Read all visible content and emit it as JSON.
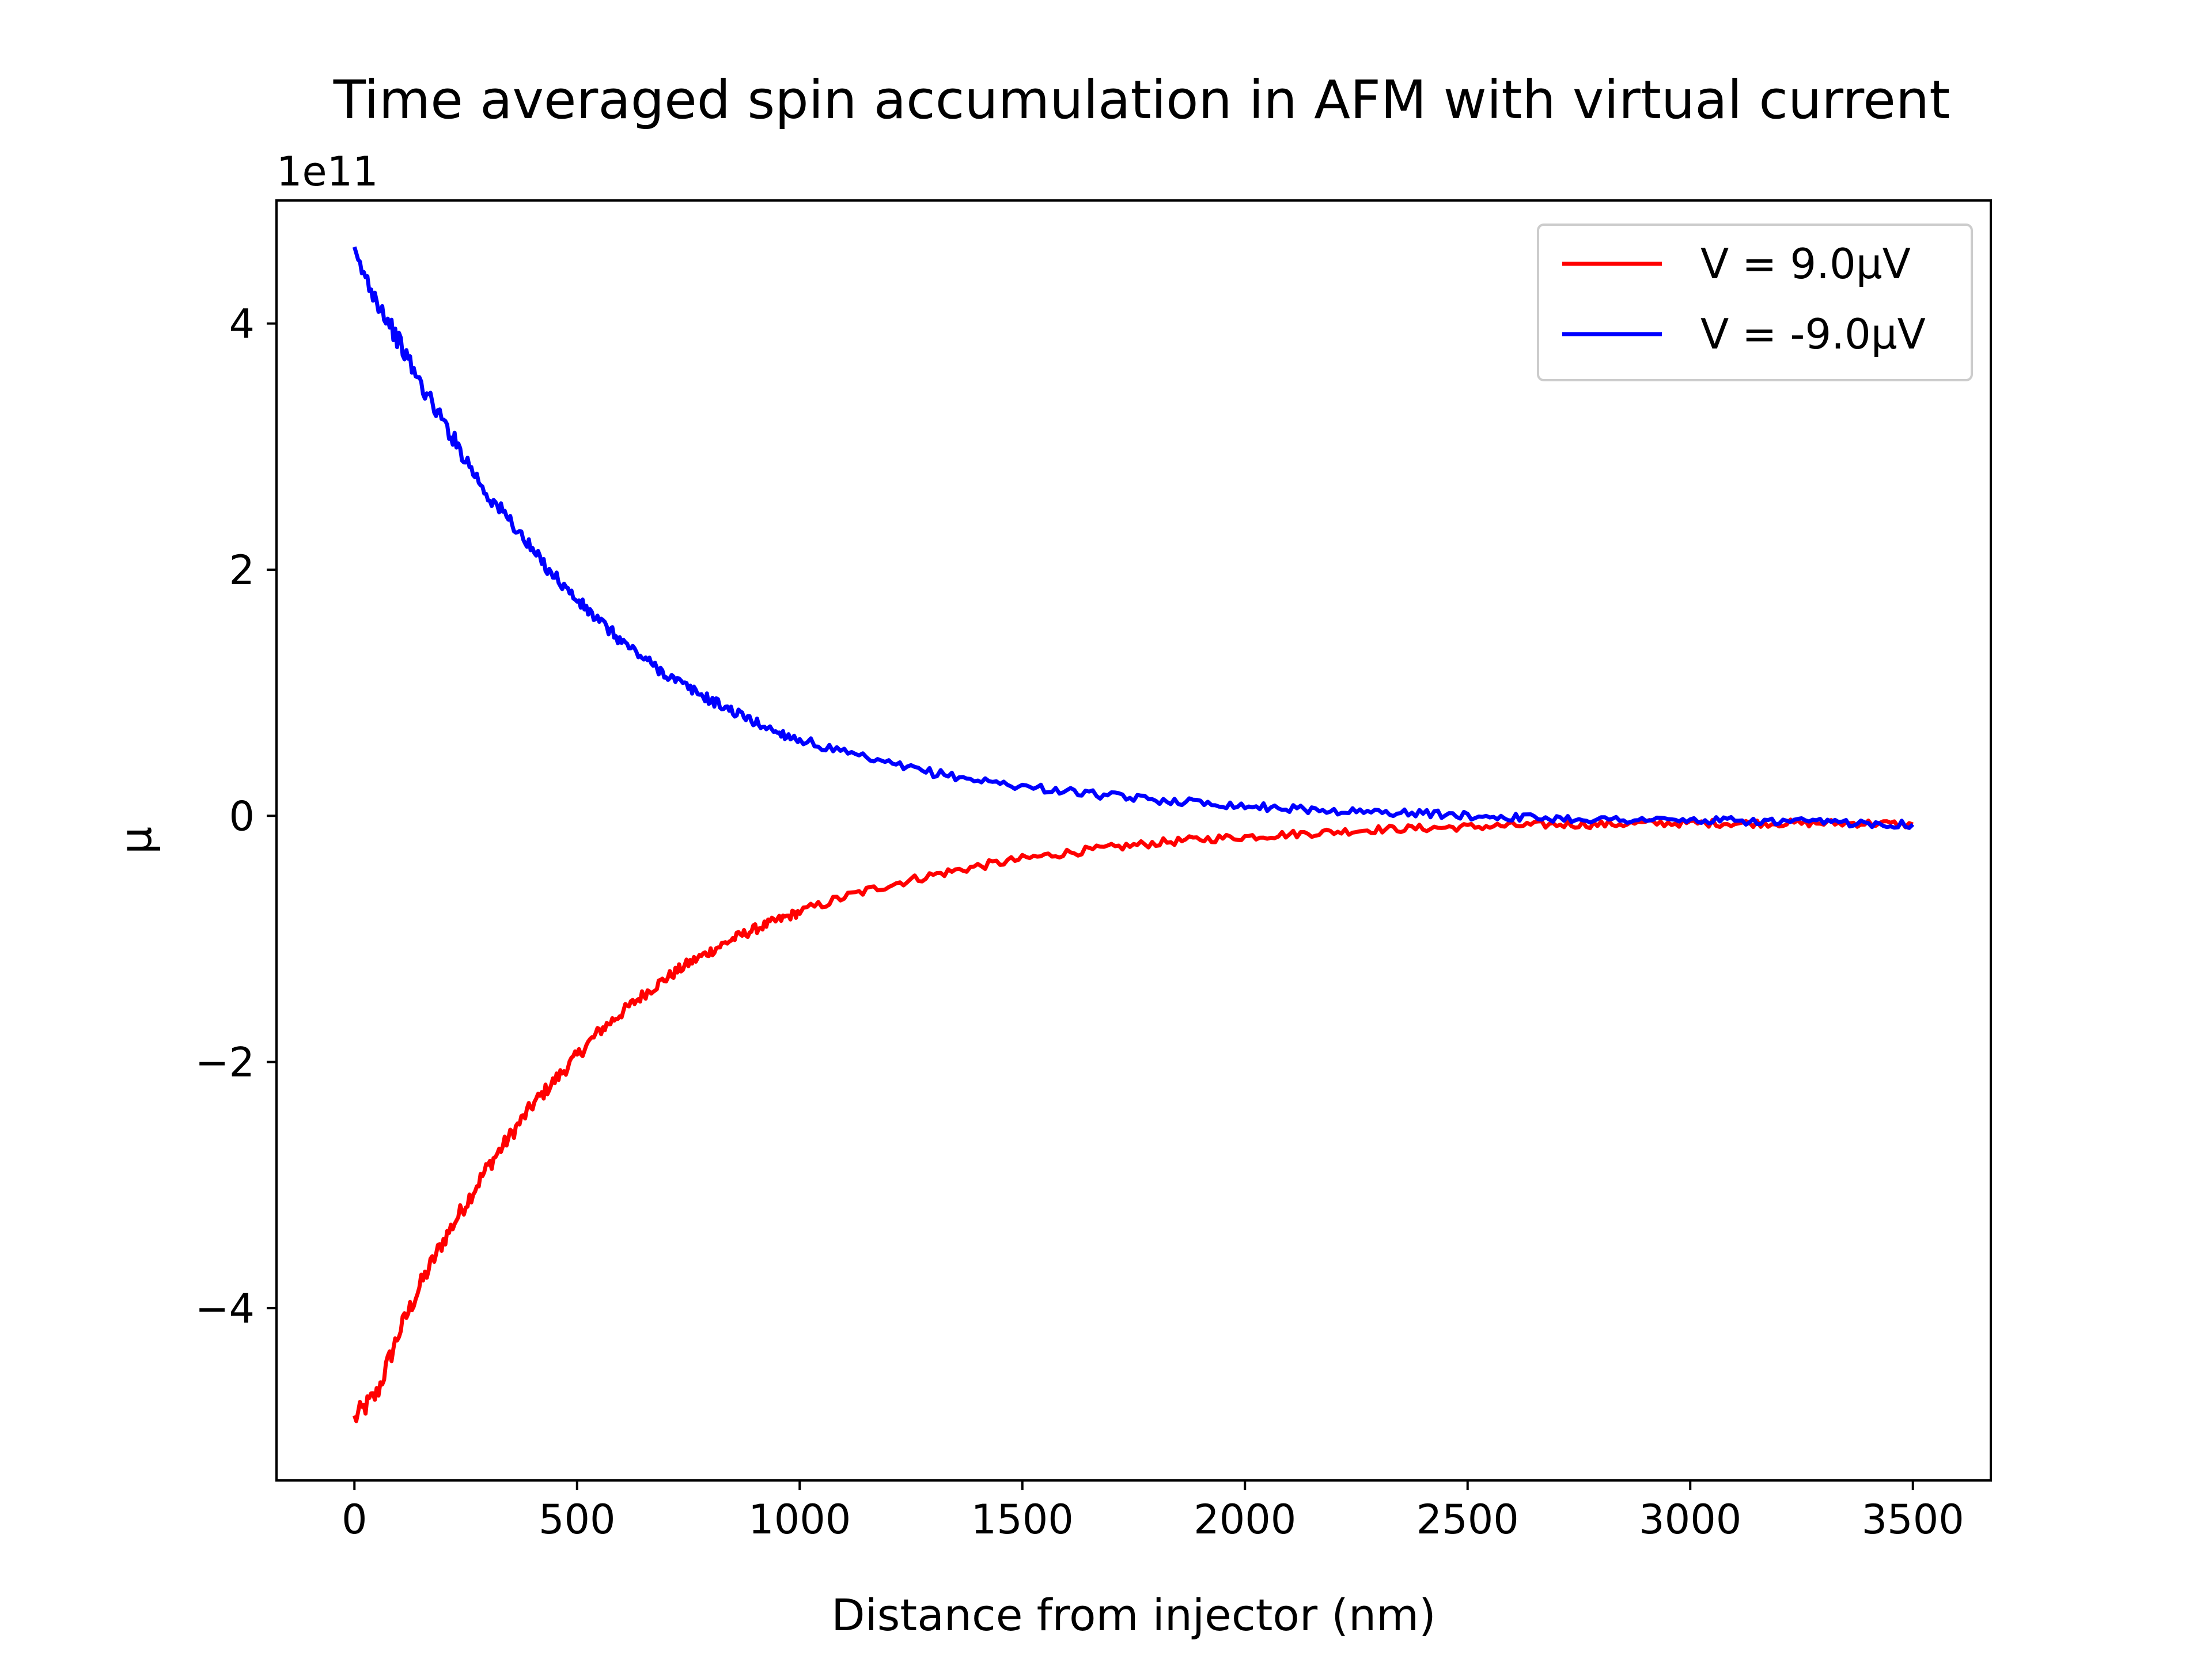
{
  "chart_data": {
    "type": "line",
    "title": "Time averaged spin accumulation in AFM with virtual current",
    "xlabel": "Distance from injector (nm)",
    "ylabel": "μ",
    "offset_text": "1e11",
    "xlim": [
      -175,
      3675
    ],
    "ylim": [
      -5.4,
      5.0
    ],
    "x_ticks": [
      0,
      500,
      1000,
      1500,
      2000,
      2500,
      3000,
      3500
    ],
    "x_tick_labels": [
      "0",
      "500",
      "1000",
      "1500",
      "2000",
      "2500",
      "3000",
      "3500"
    ],
    "y_ticks": [
      -4,
      -2,
      0,
      2,
      4
    ],
    "y_tick_labels": [
      "−4",
      "−2",
      "0",
      "2",
      "4"
    ],
    "grid": false,
    "legend_position": "upper right",
    "series": [
      {
        "name": "V = 9.0μV",
        "color": "#ff0000",
        "x": [
          0,
          50,
          100,
          150,
          200,
          250,
          300,
          350,
          400,
          450,
          500,
          550,
          600,
          650,
          700,
          750,
          800,
          850,
          900,
          950,
          1000,
          1100,
          1200,
          1300,
          1400,
          1500,
          1600,
          1700,
          1800,
          1900,
          2000,
          2100,
          2200,
          2300,
          2400,
          2500,
          2600,
          2700,
          2800,
          2900,
          3000,
          3100,
          3200,
          3300,
          3400,
          3500
        ],
        "y": [
          -4.9,
          -4.7,
          -4.2,
          -3.8,
          -3.45,
          -3.15,
          -2.85,
          -2.6,
          -2.35,
          -2.15,
          -1.95,
          -1.75,
          -1.6,
          -1.45,
          -1.32,
          -1.2,
          -1.1,
          -1.0,
          -0.92,
          -0.85,
          -0.78,
          -0.66,
          -0.56,
          -0.48,
          -0.41,
          -0.35,
          -0.3,
          -0.26,
          -0.22,
          -0.19,
          -0.17,
          -0.15,
          -0.13,
          -0.11,
          -0.1,
          -0.09,
          -0.08,
          -0.07,
          -0.07,
          -0.06,
          -0.06,
          -0.06,
          -0.06,
          -0.06,
          -0.06,
          -0.07
        ]
      },
      {
        "name": "V = -9.0μV",
        "color": "#0000ff",
        "x": [
          0,
          50,
          100,
          150,
          200,
          250,
          300,
          350,
          400,
          450,
          500,
          550,
          600,
          650,
          700,
          750,
          800,
          850,
          900,
          950,
          1000,
          1100,
          1200,
          1300,
          1400,
          1500,
          1600,
          1700,
          1800,
          1900,
          2000,
          2100,
          2200,
          2300,
          2400,
          2500,
          2600,
          2700,
          2800,
          2900,
          3000,
          3100,
          3200,
          3300,
          3400,
          3500
        ],
        "y": [
          4.55,
          4.2,
          3.85,
          3.5,
          3.2,
          2.9,
          2.6,
          2.4,
          2.15,
          1.95,
          1.75,
          1.58,
          1.42,
          1.28,
          1.15,
          1.04,
          0.94,
          0.85,
          0.76,
          0.68,
          0.62,
          0.51,
          0.42,
          0.35,
          0.29,
          0.24,
          0.2,
          0.16,
          0.13,
          0.11,
          0.08,
          0.06,
          0.04,
          0.03,
          0.02,
          0.0,
          -0.01,
          -0.02,
          -0.03,
          -0.03,
          -0.04,
          -0.04,
          -0.05,
          -0.05,
          -0.06,
          -0.07
        ]
      }
    ]
  }
}
